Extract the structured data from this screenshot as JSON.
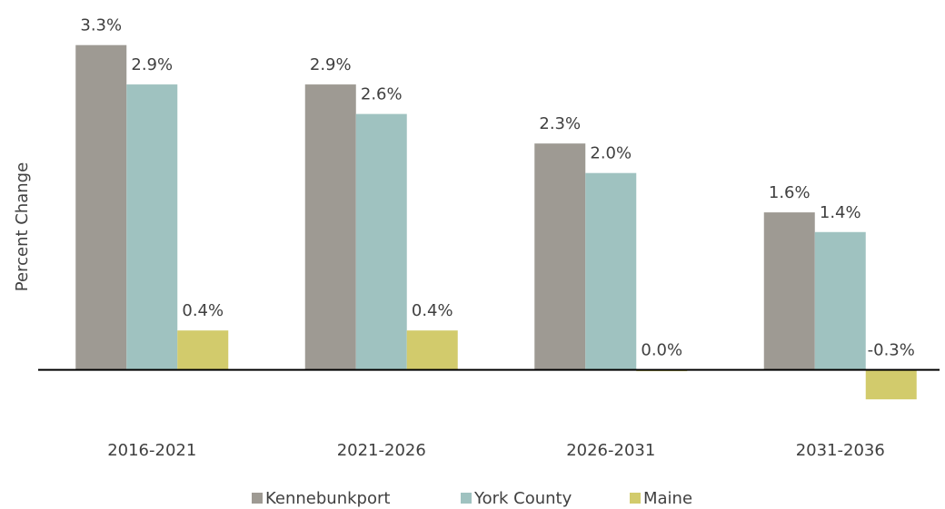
{
  "chart_data": {
    "type": "bar",
    "y_label": "Percent Change",
    "categories": [
      "2016-2021",
      "2021-2026",
      "2026-2031",
      "2031-2036"
    ],
    "series": [
      {
        "name": "Kennebunkport",
        "color": "#9e9a93",
        "values": [
          3.3,
          2.9,
          2.3,
          1.6
        ],
        "value_labels": [
          "3.3%",
          "2.9%",
          "2.3%",
          "1.6%"
        ]
      },
      {
        "name": "York County",
        "color": "#9fc2c0",
        "values": [
          2.9,
          2.6,
          2.0,
          1.4
        ],
        "value_labels": [
          "2.9%",
          "2.6%",
          "2.0%",
          "1.4%"
        ]
      },
      {
        "name": "Maine",
        "color": "#d2cb6c",
        "values": [
          0.4,
          0.4,
          0.0,
          -0.3
        ],
        "value_labels": [
          "0.4%",
          "0.4%",
          "0.0%",
          "-0.3%"
        ]
      }
    ],
    "ylim": [
      -0.4,
      3.5
    ],
    "legend": "bottom"
  }
}
